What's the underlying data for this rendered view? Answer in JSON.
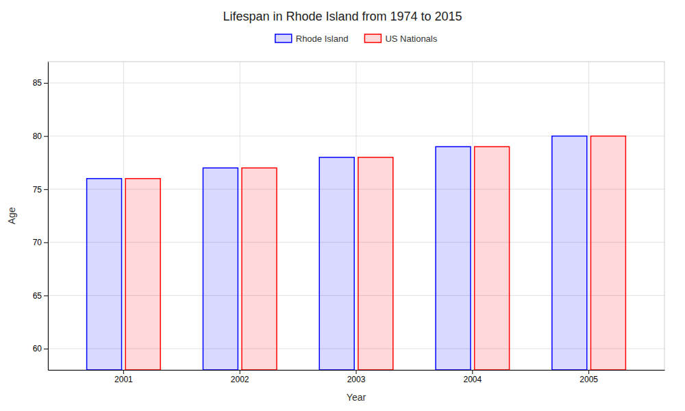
{
  "chart_data": {
    "type": "bar",
    "title": "Lifespan in Rhode Island from 1974 to 2015",
    "xlabel": "Year",
    "ylabel": "Age",
    "categories": [
      "2001",
      "2002",
      "2003",
      "2004",
      "2005"
    ],
    "series": [
      {
        "name": "Rhode Island",
        "color": "#0000ff",
        "values": [
          76,
          77,
          78,
          79,
          80
        ]
      },
      {
        "name": "US Nationals",
        "color": "#ff0000",
        "values": [
          76,
          77,
          78,
          79,
          80
        ]
      }
    ],
    "ylim": [
      58,
      87
    ],
    "yticks": [
      60,
      65,
      70,
      75,
      80,
      85
    ],
    "grid": true,
    "legend": "top"
  }
}
